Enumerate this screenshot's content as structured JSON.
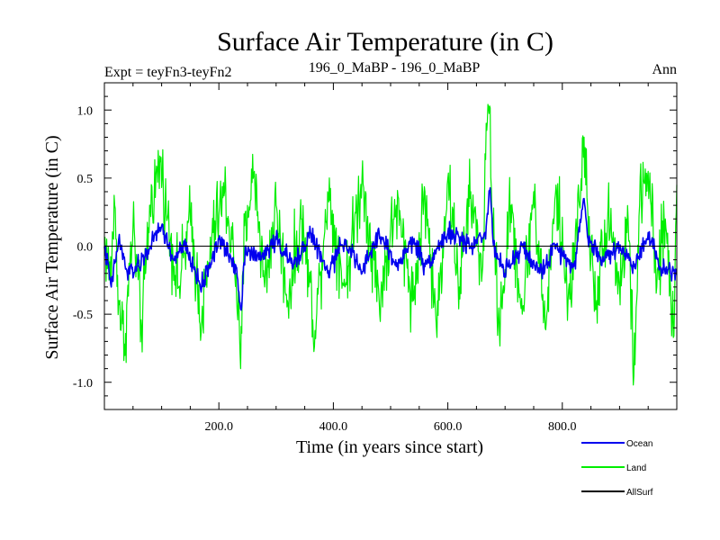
{
  "chart_data": {
    "type": "line",
    "title": "Surface Air Temperature (in C)",
    "subtitle_left": "Expt = teyFn3-teyFn2",
    "subtitle_center": "196_0_MaBP - 196_0_MaBP",
    "subtitle_right": "Ann",
    "xlabel": "Time (in years since start)",
    "ylabel": "Surface Air Temperature (in C)",
    "xlim": [
      0,
      1000
    ],
    "ylim": [
      -1.2,
      1.2
    ],
    "x_ticks": [
      200,
      400,
      600,
      800
    ],
    "x_tick_labels": [
      "200.0",
      "400.0",
      "600.0",
      "800.0"
    ],
    "y_ticks": [
      -1.0,
      -0.5,
      0.0,
      0.5,
      1.0
    ],
    "y_tick_labels": [
      "-1.0",
      "-0.5",
      "0.0",
      "0.5",
      "1.0"
    ],
    "reference_line": 0.0,
    "series": [
      {
        "name": "Land",
        "color": "#00ee00",
        "values_note": "annual values, years 0-1000",
        "anchors": [
          [
            0,
            0.05
          ],
          [
            10,
            -0.25
          ],
          [
            18,
            0.3
          ],
          [
            25,
            -0.4
          ],
          [
            35,
            -0.72
          ],
          [
            50,
            0.15
          ],
          [
            65,
            -0.6
          ],
          [
            80,
            0.3
          ],
          [
            98,
            0.62
          ],
          [
            110,
            0.2
          ],
          [
            130,
            -0.3
          ],
          [
            150,
            0.2
          ],
          [
            170,
            -0.55
          ],
          [
            190,
            0.1
          ],
          [
            210,
            0.4
          ],
          [
            230,
            -0.2
          ],
          [
            238,
            -0.9
          ],
          [
            245,
            0.15
          ],
          [
            262,
            0.55
          ],
          [
            280,
            -0.3
          ],
          [
            300,
            0.3
          ],
          [
            320,
            -0.4
          ],
          [
            345,
            0.2
          ],
          [
            368,
            -0.62
          ],
          [
            390,
            0.4
          ],
          [
            420,
            -0.3
          ],
          [
            450,
            0.5
          ],
          [
            480,
            -0.4
          ],
          [
            510,
            0.3
          ],
          [
            540,
            -0.4
          ],
          [
            560,
            0.4
          ],
          [
            580,
            -0.6
          ],
          [
            600,
            0.5
          ],
          [
            620,
            -0.3
          ],
          [
            640,
            0.4
          ],
          [
            660,
            -0.2
          ],
          [
            668,
            0.85
          ],
          [
            673,
            1.03
          ],
          [
            678,
            0.2
          ],
          [
            690,
            -0.6
          ],
          [
            710,
            0.3
          ],
          [
            730,
            -0.5
          ],
          [
            750,
            0.4
          ],
          [
            770,
            -0.6
          ],
          [
            790,
            0.4
          ],
          [
            810,
            -0.4
          ],
          [
            830,
            0.3
          ],
          [
            838,
            0.8
          ],
          [
            845,
            0.2
          ],
          [
            860,
            -0.4
          ],
          [
            880,
            0.3
          ],
          [
            900,
            -0.3
          ],
          [
            915,
            0.2
          ],
          [
            925,
            -0.95
          ],
          [
            935,
            0.3
          ],
          [
            950,
            0.55
          ],
          [
            965,
            -0.3
          ],
          [
            980,
            0.2
          ],
          [
            995,
            -0.66
          ],
          [
            1000,
            0.45
          ]
        ]
      },
      {
        "name": "Ocean",
        "color": "#0000ee",
        "values_note": "annual values, years 0-1000",
        "anchors": [
          [
            0,
            0.0
          ],
          [
            12,
            -0.3
          ],
          [
            25,
            0.05
          ],
          [
            40,
            -0.2
          ],
          [
            60,
            -0.15
          ],
          [
            80,
            0.0
          ],
          [
            100,
            0.15
          ],
          [
            120,
            -0.1
          ],
          [
            140,
            0.0
          ],
          [
            170,
            -0.3
          ],
          [
            200,
            0.05
          ],
          [
            230,
            -0.15
          ],
          [
            239,
            -0.47
          ],
          [
            246,
            0.0
          ],
          [
            270,
            -0.1
          ],
          [
            300,
            0.05
          ],
          [
            330,
            -0.15
          ],
          [
            360,
            0.1
          ],
          [
            390,
            -0.2
          ],
          [
            420,
            0.05
          ],
          [
            450,
            -0.2
          ],
          [
            480,
            0.1
          ],
          [
            510,
            -0.15
          ],
          [
            540,
            0.05
          ],
          [
            560,
            -0.15
          ],
          [
            600,
            0.1
          ],
          [
            640,
            0.0
          ],
          [
            665,
            0.1
          ],
          [
            673,
            0.4
          ],
          [
            680,
            0.0
          ],
          [
            700,
            -0.2
          ],
          [
            730,
            0.0
          ],
          [
            760,
            -0.2
          ],
          [
            790,
            0.0
          ],
          [
            820,
            -0.15
          ],
          [
            838,
            0.35
          ],
          [
            845,
            0.05
          ],
          [
            870,
            -0.1
          ],
          [
            900,
            0.0
          ],
          [
            925,
            -0.15
          ],
          [
            950,
            0.1
          ],
          [
            970,
            -0.15
          ],
          [
            1000,
            -0.2
          ]
        ]
      }
    ],
    "legend": {
      "placement": "bottom-right",
      "entries": [
        {
          "label": "Ocean",
          "color": "#0000ee"
        },
        {
          "label": "Land",
          "color": "#00ee00"
        },
        {
          "label": "AllSurf",
          "color": "#000000"
        }
      ]
    }
  }
}
